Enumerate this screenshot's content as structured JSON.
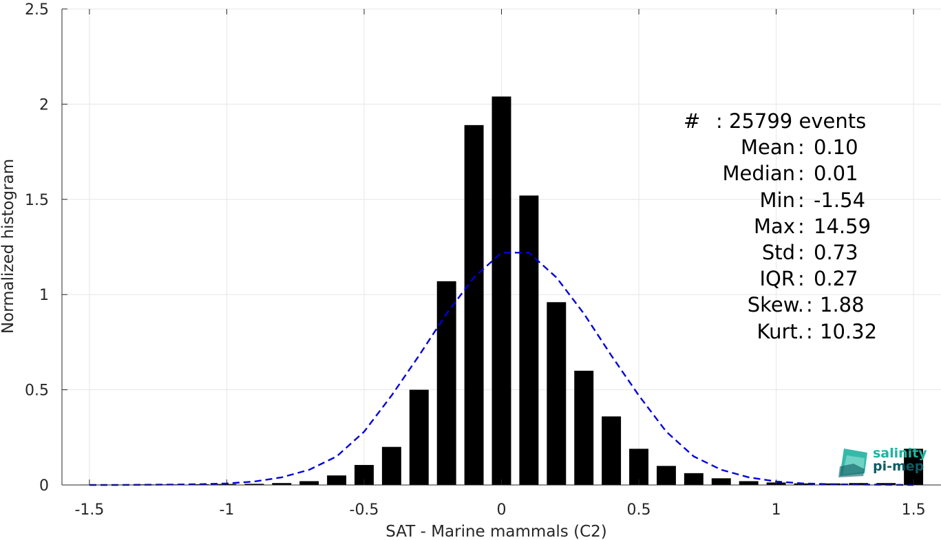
{
  "chart_data": {
    "type": "bar",
    "xlabel": "SAT - Marine mammals (C2)",
    "ylabel": "Normalized histogram",
    "xlim": [
      -1.6,
      1.6
    ],
    "ylim": [
      0,
      2.5
    ],
    "xticks": [
      -1.5,
      -1,
      -0.5,
      0,
      0.5,
      1,
      1.5
    ],
    "xtick_labels": [
      "-1.5",
      "-1",
      "-0.5",
      "0",
      "0.5",
      "1",
      "1.5"
    ],
    "yticks": [
      0,
      0.5,
      1,
      1.5,
      2,
      2.5
    ],
    "ytick_labels": [
      "0",
      "0.5",
      "1",
      "1.5",
      "2",
      "2.5"
    ],
    "grid": true,
    "bin_width": 0.1,
    "bars": [
      {
        "x": -1.5,
        "y": 0.002
      },
      {
        "x": -1.4,
        "y": 0.002
      },
      {
        "x": -1.3,
        "y": 0.003
      },
      {
        "x": -1.2,
        "y": 0.003
      },
      {
        "x": -1.1,
        "y": 0.004
      },
      {
        "x": -1.0,
        "y": 0.005
      },
      {
        "x": -0.9,
        "y": 0.006
      },
      {
        "x": -0.8,
        "y": 0.01
      },
      {
        "x": -0.7,
        "y": 0.02
      },
      {
        "x": -0.6,
        "y": 0.05
      },
      {
        "x": -0.5,
        "y": 0.105
      },
      {
        "x": -0.4,
        "y": 0.2
      },
      {
        "x": -0.3,
        "y": 0.5
      },
      {
        "x": -0.2,
        "y": 1.07
      },
      {
        "x": -0.1,
        "y": 1.89
      },
      {
        "x": 0.0,
        "y": 2.04
      },
      {
        "x": 0.1,
        "y": 1.52
      },
      {
        "x": 0.2,
        "y": 0.96
      },
      {
        "x": 0.3,
        "y": 0.6
      },
      {
        "x": 0.4,
        "y": 0.36
      },
      {
        "x": 0.5,
        "y": 0.19
      },
      {
        "x": 0.6,
        "y": 0.1
      },
      {
        "x": 0.7,
        "y": 0.062
      },
      {
        "x": 0.8,
        "y": 0.035
      },
      {
        "x": 0.9,
        "y": 0.02
      },
      {
        "x": 1.0,
        "y": 0.013
      },
      {
        "x": 1.1,
        "y": 0.008
      },
      {
        "x": 1.2,
        "y": 0.008
      },
      {
        "x": 1.3,
        "y": 0.01
      },
      {
        "x": 1.4,
        "y": 0.01
      },
      {
        "x": 1.5,
        "y": 0.19
      }
    ],
    "curve": {
      "style": "dashed",
      "color": "#0000dd",
      "points": [
        [
          -1.5,
          0.0
        ],
        [
          -1.4,
          0.0
        ],
        [
          -1.3,
          0.001
        ],
        [
          -1.2,
          0.002
        ],
        [
          -1.1,
          0.004
        ],
        [
          -1.0,
          0.008
        ],
        [
          -0.9,
          0.018
        ],
        [
          -0.8,
          0.04
        ],
        [
          -0.7,
          0.08
        ],
        [
          -0.6,
          0.15
        ],
        [
          -0.5,
          0.28
        ],
        [
          -0.4,
          0.47
        ],
        [
          -0.3,
          0.68
        ],
        [
          -0.2,
          0.9
        ],
        [
          -0.1,
          1.09
        ],
        [
          0.0,
          1.22
        ],
        [
          0.1,
          1.22
        ],
        [
          0.2,
          1.09
        ],
        [
          0.3,
          0.9
        ],
        [
          0.4,
          0.68
        ],
        [
          0.5,
          0.47
        ],
        [
          0.6,
          0.28
        ],
        [
          0.7,
          0.15
        ],
        [
          0.8,
          0.08
        ],
        [
          0.9,
          0.04
        ],
        [
          1.0,
          0.018
        ],
        [
          1.1,
          0.008
        ],
        [
          1.2,
          0.004
        ],
        [
          1.3,
          0.002
        ],
        [
          1.4,
          0.001
        ],
        [
          1.5,
          0.0
        ]
      ]
    }
  },
  "stats": [
    {
      "key": "#",
      "value": "25799 events"
    },
    {
      "key": "Mean",
      "value": "0.10"
    },
    {
      "key": "Median",
      "value": "0.01"
    },
    {
      "key": "Min",
      "value": "-1.54"
    },
    {
      "key": "Max",
      "value": "14.59"
    },
    {
      "key": "Std",
      "value": "0.73"
    },
    {
      "key": "IQR",
      "value": "0.27"
    },
    {
      "key": "Skew.",
      "value": "1.88"
    },
    {
      "key": "Kurt.",
      "value": "10.32"
    }
  ],
  "logo": {
    "line1": "salinity",
    "line2": "pi-mep",
    "color1": "#1fb3a0",
    "color2": "#0d5c63"
  },
  "colors": {
    "bar": "#000000",
    "curve": "#0000dd",
    "grid": "#e6e6e6",
    "axis": "#262626"
  }
}
